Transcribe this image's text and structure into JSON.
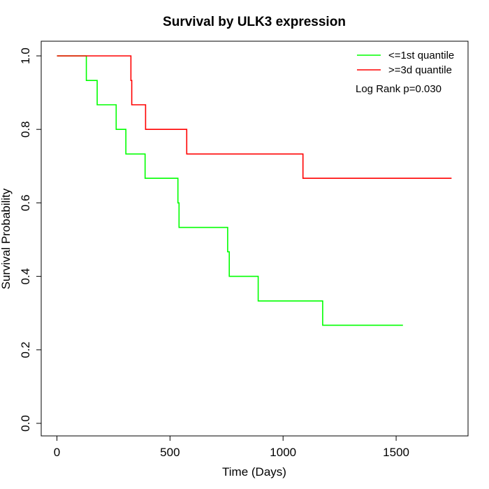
{
  "chart_data": {
    "type": "line",
    "title": "Survival by ULK3 expression",
    "xlabel": "Time (Days)",
    "ylabel": "Survival Probability",
    "xlim": [
      0,
      1750
    ],
    "ylim": [
      0,
      1.0
    ],
    "x_ticks": [
      0,
      500,
      1000,
      1500
    ],
    "y_ticks": [
      0.0,
      0.2,
      0.4,
      0.6,
      0.8,
      1.0
    ],
    "x_tick_labels": [
      "0",
      "500",
      "1000",
      "1500"
    ],
    "y_tick_labels": [
      "0.0",
      "0.2",
      "0.4",
      "0.6",
      "0.8",
      "1.0"
    ],
    "grid": false,
    "legend_position": "top-right",
    "annotation": "Log Rank p=0.030",
    "series": [
      {
        "name": "<=1st quantile",
        "color": "#00ff00",
        "step": "post",
        "x": [
          0,
          130,
          178,
          262,
          305,
          390,
          535,
          540,
          755,
          762,
          890,
          1175,
          1530
        ],
        "y": [
          1.0,
          0.933,
          0.867,
          0.8,
          0.733,
          0.667,
          0.6,
          0.533,
          0.467,
          0.4,
          0.333,
          0.267,
          0.267
        ]
      },
      {
        "name": ">=3d quantile",
        "color": "#ff0000",
        "step": "post",
        "x": [
          0,
          327,
          331,
          392,
          574,
          1088,
          1745
        ],
        "y": [
          1.0,
          0.933,
          0.867,
          0.8,
          0.733,
          0.667,
          0.667
        ]
      }
    ]
  }
}
